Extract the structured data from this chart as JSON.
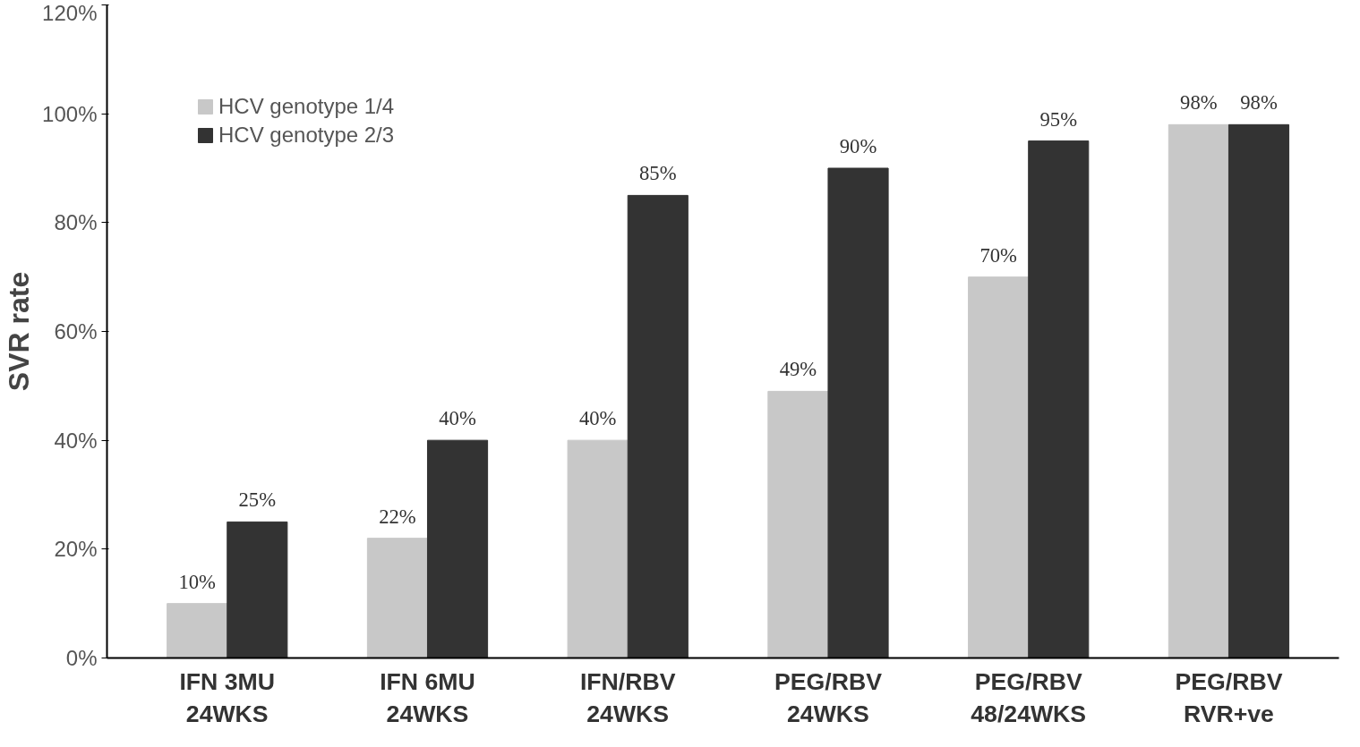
{
  "chart_data": {
    "type": "bar",
    "ylabel": "SVR rate",
    "categories": [
      "IFN 3MU\n24WKS",
      "IFN 6MU\n24WKS",
      "IFN/RBV\n24WKS",
      "PEG/RBV\n24WKS",
      "PEG/RBV\n48/24WKS",
      "PEG/RBV\nRVR+ve"
    ],
    "series": [
      {
        "name": "HCV genotype 1/4",
        "color": "#c8c8c8",
        "values": [
          10,
          22,
          40,
          49,
          70,
          98
        ],
        "value_labels": [
          "10%",
          "22%",
          "40%",
          "49%",
          "70%",
          "98%"
        ]
      },
      {
        "name": "HCV genotype 2/3",
        "color": "#333333",
        "values": [
          25,
          40,
          85,
          90,
          95,
          98
        ],
        "value_labels": [
          "25%",
          "40%",
          "85%",
          "90%",
          "95%",
          "98%"
        ]
      }
    ],
    "ylim": [
      0,
      120
    ],
    "yticks": [
      {
        "value": 0,
        "label": "0%"
      },
      {
        "value": 20,
        "label": "20%"
      },
      {
        "value": 40,
        "label": "40%"
      },
      {
        "value": 60,
        "label": "60%"
      },
      {
        "value": 80,
        "label": "80%"
      },
      {
        "value": 100,
        "label": "100%"
      },
      {
        "value": 120,
        "label": "120%"
      }
    ],
    "legend": "top left"
  }
}
